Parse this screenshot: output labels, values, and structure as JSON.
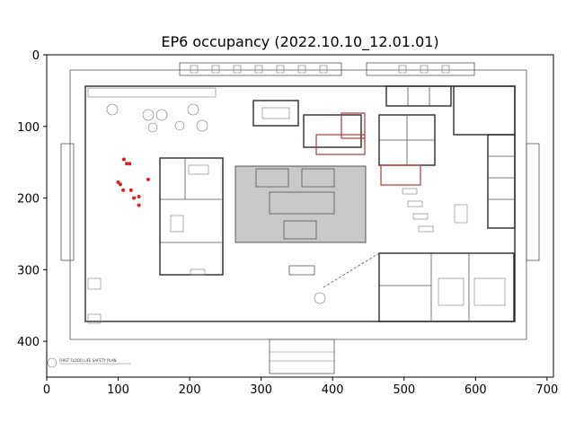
{
  "figure": {
    "title": "EP6 occupancy (2022.10.10_12.01.01)"
  },
  "floorplan": {
    "caption": "FIRST FLOOR LIFE SAFETY PLAN"
  },
  "chart_data": {
    "type": "scatter",
    "title": "EP6 occupancy (2022.10.10_12.01.01)",
    "xlabel": "",
    "ylabel": "",
    "xlim": [
      0,
      709
    ],
    "ylim": [
      450,
      0
    ],
    "y_inverted": true,
    "xticks": [
      0,
      100,
      200,
      300,
      400,
      500,
      600,
      700
    ],
    "yticks": [
      0,
      100,
      200,
      300,
      400
    ],
    "grid": false,
    "background": "floor plan image",
    "marker_color": "#e0201b",
    "points": [
      {
        "x": 108,
        "y": 146
      },
      {
        "x": 112,
        "y": 152
      },
      {
        "x": 116,
        "y": 152
      },
      {
        "x": 100,
        "y": 178
      },
      {
        "x": 103,
        "y": 181
      },
      {
        "x": 107,
        "y": 189
      },
      {
        "x": 118,
        "y": 189
      },
      {
        "x": 122,
        "y": 200
      },
      {
        "x": 129,
        "y": 198
      },
      {
        "x": 129,
        "y": 210
      },
      {
        "x": 142,
        "y": 174
      }
    ]
  }
}
